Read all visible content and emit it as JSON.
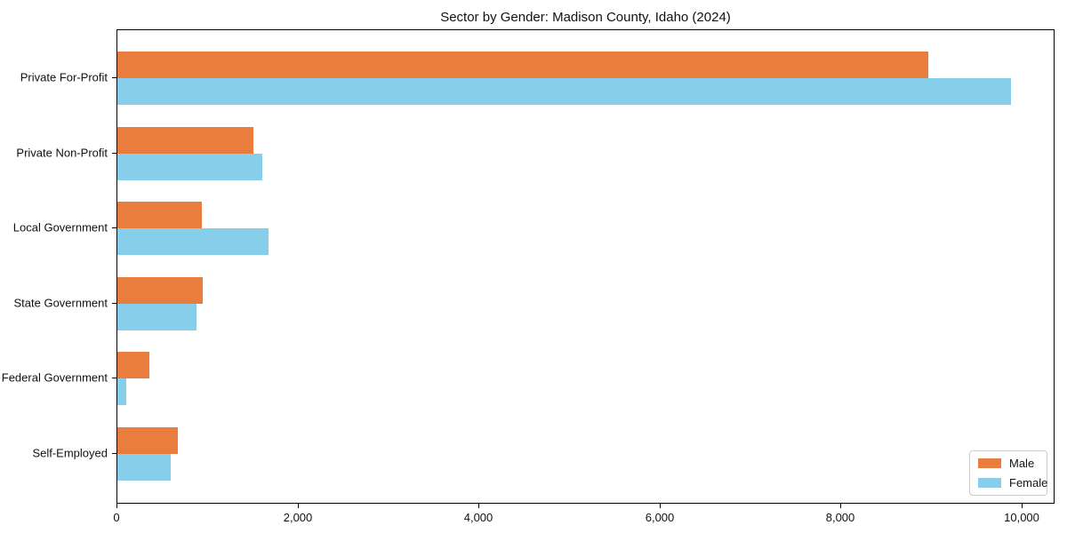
{
  "chart_data": {
    "type": "bar",
    "orientation": "horizontal",
    "title": "Sector by Gender: Madison County, Idaho (2024)",
    "categories": [
      "Private For-Profit",
      "Private Non-Profit",
      "Local Government",
      "State Government",
      "Federal Government",
      "Self-Employed"
    ],
    "series": [
      {
        "name": "Male",
        "color": "#e87d3e",
        "values": [
          8960,
          1500,
          935,
          940,
          350,
          670
        ]
      },
      {
        "name": "Female",
        "color": "#87ceeb",
        "values": [
          9870,
          1605,
          1670,
          875,
          100,
          585
        ]
      }
    ],
    "xlabel": "",
    "ylabel": "",
    "xlim": [
      0,
      10364
    ],
    "x_ticks": [
      0,
      2000,
      4000,
      6000,
      8000,
      10000
    ],
    "x_tick_labels": [
      "0",
      "2,000",
      "4,000",
      "6,000",
      "8,000",
      "10,000"
    ],
    "legend_position": "lower right",
    "grid": false,
    "axis_color": "#000000",
    "text_color": "#111111"
  }
}
